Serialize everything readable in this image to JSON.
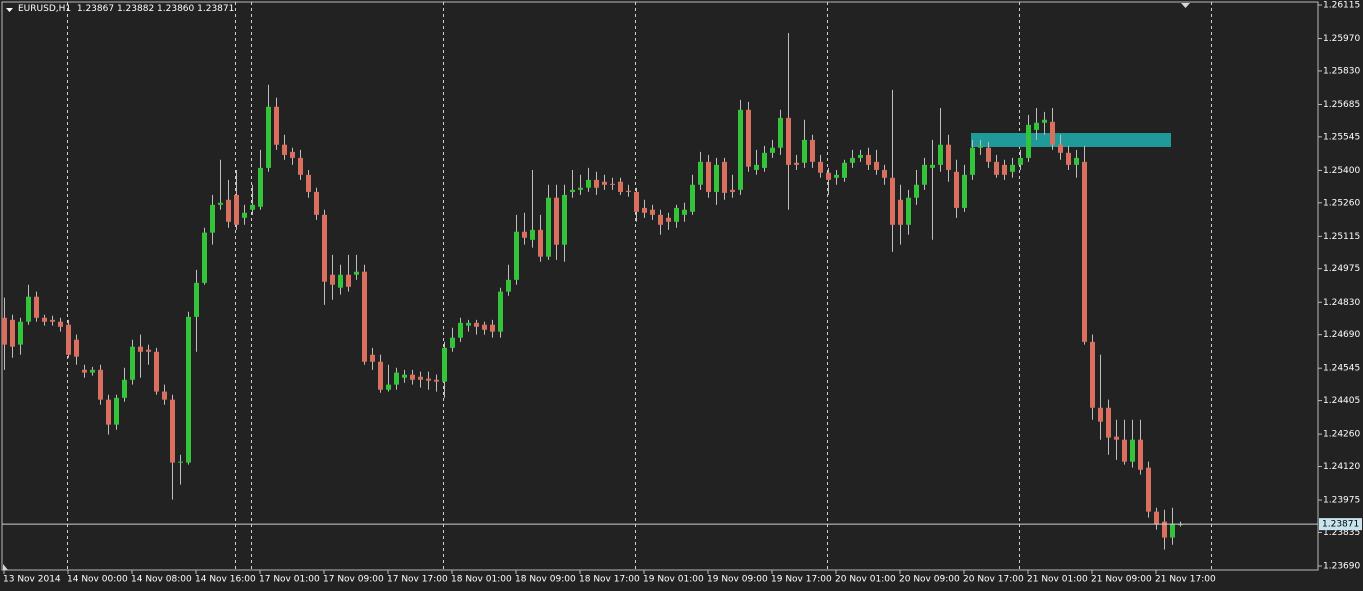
{
  "chart_data": {
    "type": "candlestick",
    "symbol": "EURUSD,H1",
    "up_color": "#33c43a",
    "down_color": "#d9705f",
    "wick_color": "#bdbdbd",
    "ylim": [
      1.2369,
      1.26115
    ],
    "yticks": [
      1.26115,
      {
        "value": 1.2597,
        "label": "1.25970"
      },
      {
        "value": 1.2583,
        "label": "1.25830"
      },
      1.25685,
      1.25545,
      {
        "value": 1.254,
        "label": "1.25400"
      },
      {
        "value": 1.2526,
        "label": "1.25260"
      },
      1.25115,
      1.24975,
      {
        "value": 1.2483,
        "label": "1.24830"
      },
      {
        "value": 1.2469,
        "label": "1.24690"
      },
      1.24545,
      1.24405,
      {
        "value": 1.2426,
        "label": "1.24260"
      },
      {
        "value": 1.2412,
        "label": "1.24120"
      },
      1.23975,
      1.23835,
      {
        "value": 1.2369,
        "label": "1.23690"
      }
    ],
    "categories": [
      "13 Nov 2014",
      null,
      null,
      null,
      null,
      null,
      null,
      null,
      "14 Nov 00:00",
      null,
      null,
      null,
      null,
      null,
      null,
      null,
      "14 Nov 08:00",
      null,
      null,
      null,
      null,
      null,
      null,
      null,
      "14 Nov 16:00",
      null,
      null,
      null,
      null,
      null,
      null,
      null,
      "17 Nov 01:00",
      null,
      null,
      null,
      null,
      null,
      null,
      null,
      "17 Nov 09:00",
      null,
      null,
      null,
      null,
      null,
      null,
      null,
      "17 Nov 17:00",
      null,
      null,
      null,
      null,
      null,
      null,
      null,
      "18 Nov 01:00",
      null,
      null,
      null,
      null,
      null,
      null,
      null,
      "18 Nov 09:00",
      null,
      null,
      null,
      null,
      null,
      null,
      null,
      "18 Nov 17:00",
      null,
      null,
      null,
      null,
      null,
      null,
      null,
      "19 Nov 01:00",
      null,
      null,
      null,
      null,
      null,
      null,
      null,
      "19 Nov 09:00",
      null,
      null,
      null,
      null,
      null,
      null,
      null,
      "19 Nov 17:00",
      null,
      null,
      null,
      null,
      null,
      null,
      null,
      "20 Nov 01:00",
      null,
      null,
      null,
      null,
      null,
      null,
      null,
      "20 Nov 09:00",
      null,
      null,
      null,
      null,
      null,
      null,
      null,
      "20 Nov 17:00",
      null,
      null,
      null,
      null,
      null,
      null,
      null,
      "21 Nov 01:00",
      null,
      null,
      null,
      null,
      null,
      null,
      null,
      "21 Nov 09:00",
      null,
      null,
      null,
      null,
      null,
      null,
      null,
      "21 Nov 17:00",
      null,
      null,
      null
    ],
    "open": [
      1.24763,
      1.24754,
      1.24647,
      1.24746,
      1.24854,
      1.24763,
      1.24754,
      1.24746,
      1.24733,
      1.24668,
      1.24538,
      1.24526,
      1.24538,
      1.24409,
      1.24301,
      1.24417,
      1.24495,
      1.24638,
      1.24625,
      1.24616,
      1.24444,
      1.24409,
      1.24137,
      1.24137,
      1.24767,
      1.24914,
      1.25131,
      1.25251,
      1.25273,
      1.25294,
      1.25195,
      1.2523,
      1.25243,
      1.25411,
      1.25675,
      1.25511,
      1.2548,
      1.25454,
      1.25381,
      1.25307,
      1.25208,
      1.24949,
      1.24893,
      1.24949,
      1.24949,
      1.24962,
      1.24603,
      1.24573,
      1.24452,
      1.24474,
      1.24504,
      1.24517,
      1.24508,
      1.245,
      1.24495,
      1.24487,
      1.24633,
      1.24677,
      1.24729,
      1.24741,
      1.24733,
      1.24733,
      1.24703,
      1.24876,
      1.24927,
      1.25135,
      1.251,
      1.25143,
      1.25027,
      1.25282,
      1.25079,
      1.25307,
      1.25316,
      1.25325,
      1.25359,
      1.25351,
      1.25342,
      1.25351,
      1.25312,
      1.25307,
      1.25238,
      1.2523,
      1.25208,
      1.25195,
      1.25178,
      1.25208,
      1.25221,
      1.25338,
      1.25437,
      1.25307,
      1.25437,
      1.25316,
      1.25316,
      1.25662,
      1.25402,
      1.25411,
      1.25476,
      1.25498,
      1.25627,
      1.25433,
      1.25433,
      1.25532,
      1.25437,
      1.2539,
      1.25368,
      1.25368,
      1.25433,
      1.25454,
      1.25467,
      1.25437,
      1.25402,
      1.25368,
      1.25273,
      1.25165,
      1.25282,
      1.25338,
      1.25411,
      1.25424,
      1.25511,
      1.25394,
      1.25238,
      1.25381,
      1.25498,
      1.25498,
      1.25437,
      1.25424,
      1.25394,
      1.25424,
      1.25454,
      1.25575,
      1.25606,
      1.2561,
      1.25511,
      1.25476,
      1.25424,
      1.25437,
      1.24659,
      1.24374,
      1.24374,
      1.24249,
      1.24236,
      1.24141,
      1.24236,
      1.24115,
      1.23925,
      1.23882,
      1.23813,
      1.23867
    ],
    "high": [
      1.2485,
      1.24776,
      1.24763,
      1.24906,
      1.24876,
      1.24776,
      1.24772,
      1.24763,
      1.24754,
      1.2469,
      1.2456,
      1.24551,
      1.2456,
      1.2443,
      1.2443,
      1.24547,
      1.24668,
      1.2469,
      1.24647,
      1.24633,
      1.24474,
      1.2443,
      1.24171,
      1.24789,
      1.2497,
      1.25152,
      1.25294,
      1.25446,
      1.25359,
      1.25402,
      1.25251,
      1.25338,
      1.25489,
      1.2577,
      1.25714,
      1.25554,
      1.25498,
      1.25489,
      1.25402,
      1.25325,
      1.2523,
      1.25035,
      1.24992,
      1.25035,
      1.25035,
      1.24992,
      1.24633,
      1.24603,
      1.2456,
      1.24547,
      1.24538,
      1.24538,
      1.2453,
      1.2453,
      1.24517,
      1.24659,
      1.2472,
      1.24763,
      1.24754,
      1.24754,
      1.24746,
      1.24754,
      1.24893,
      1.24992,
      1.25208,
      1.25217,
      1.25402,
      1.25208,
      1.25338,
      1.25338,
      1.25338,
      1.25402,
      1.25381,
      1.25411,
      1.25394,
      1.25381,
      1.25368,
      1.25368,
      1.25338,
      1.25325,
      1.25273,
      1.25251,
      1.2523,
      1.25217,
      1.25251,
      1.2526,
      1.25381,
      1.2548,
      1.25467,
      1.25454,
      1.25454,
      1.25381,
      1.25705,
      1.25696,
      1.25489,
      1.25506,
      1.25532,
      1.25662,
      1.25994,
      1.25467,
      1.25619,
      1.25554,
      1.25467,
      1.25411,
      1.25402,
      1.25446,
      1.25489,
      1.25489,
      1.25498,
      1.25489,
      1.25424,
      1.25748,
      1.25338,
      1.25316,
      1.25402,
      1.25454,
      1.25532,
      1.2567,
      1.25554,
      1.25446,
      1.25424,
      1.25532,
      1.25532,
      1.25523,
      1.25467,
      1.25446,
      1.25454,
      1.25489,
      1.2564,
      1.2567,
      1.25653,
      1.2567,
      1.25554,
      1.25506,
      1.25489,
      1.25506,
      1.2469,
      1.24603,
      1.24409,
      1.24322,
      1.24322,
      1.24322,
      1.24322,
      1.24141,
      1.23942,
      1.23933,
      1.23942,
      1.23882
    ],
    "low": [
      1.24538,
      1.2459,
      1.24603,
      1.24733,
      1.24746,
      1.24729,
      1.24729,
      1.24703,
      1.2459,
      1.2456,
      1.24504,
      1.24513,
      1.24387,
      1.24258,
      1.24279,
      1.244,
      1.24474,
      1.24504,
      1.2456,
      1.2443,
      1.24387,
      1.23977,
      1.24042,
      1.24128,
      1.24616,
      1.24906,
      1.25079,
      1.2523,
      1.25152,
      1.25143,
      1.25165,
      1.25208,
      1.2523,
      1.25394,
      1.25489,
      1.25446,
      1.25424,
      1.25359,
      1.25282,
      1.25186,
      1.24819,
      1.24841,
      1.24863,
      1.24876,
      1.24927,
      1.2456,
      1.24538,
      1.24439,
      1.24444,
      1.24452,
      1.24482,
      1.24474,
      1.24461,
      1.24452,
      1.24444,
      1.24417,
      1.24616,
      1.24659,
      1.24703,
      1.2469,
      1.2469,
      1.24677,
      1.24677,
      1.24858,
      1.24906,
      1.25079,
      1.25066,
      1.25005,
      1.25013,
      1.25013,
      1.25005,
      1.25282,
      1.25294,
      1.25307,
      1.25294,
      1.25316,
      1.25316,
      1.25294,
      1.25286,
      1.25178,
      1.25195,
      1.25186,
      1.25122,
      1.25143,
      1.25152,
      1.25178,
      1.25208,
      1.25316,
      1.25282,
      1.25251,
      1.25273,
      1.25282,
      1.25294,
      1.25394,
      1.25381,
      1.25394,
      1.25454,
      1.25467,
      1.2523,
      1.25402,
      1.25411,
      1.25411,
      1.25368,
      1.25294,
      1.25338,
      1.25351,
      1.25411,
      1.25437,
      1.25402,
      1.25381,
      1.25338,
      1.25048,
      1.25079,
      1.25122,
      1.25251,
      1.25316,
      1.251,
      1.25394,
      1.25351,
      1.25195,
      1.25221,
      1.25359,
      1.25467,
      1.25411,
      1.25368,
      1.25359,
      1.25368,
      1.25402,
      1.25437,
      1.25532,
      1.25554,
      1.25489,
      1.25446,
      1.25402,
      1.25368,
      1.24647,
      1.24322,
      1.24236,
      1.24171,
      1.24149,
      1.24128,
      1.24115,
      1.24085,
      1.23899,
      1.23847,
      1.23761,
      1.23782,
      1.2386
    ],
    "low_label": "1.23860",
    "close": [
      1.24647,
      1.24638,
      1.24746,
      1.24854,
      1.24763,
      1.24746,
      1.24746,
      1.24724,
      1.24603,
      1.24595,
      1.24526,
      1.24538,
      1.24409,
      1.24301,
      1.24417,
      1.24495,
      1.24638,
      1.24616,
      1.24616,
      1.24444,
      1.24409,
      1.24137,
      1.24141,
      1.24767,
      1.24914,
      1.25131,
      1.25251,
      1.2526,
      1.25178,
      1.25165,
      1.25217,
      1.25251,
      1.25411,
      1.25675,
      1.25511,
      1.25467,
      1.25454,
      1.25381,
      1.25307,
      1.25208,
      1.24919,
      1.24906,
      1.24949,
      1.24897,
      1.24962,
      1.24573,
      1.24573,
      1.24452,
      1.24474,
      1.24526,
      1.24517,
      1.24495,
      1.24495,
      1.24491,
      1.24487,
      1.24633,
      1.24677,
      1.24741,
      1.24741,
      1.24724,
      1.24711,
      1.24703,
      1.24876,
      1.24927,
      1.25135,
      1.25109,
      1.25143,
      1.25027,
      1.25282,
      1.25079,
      1.25294,
      1.25316,
      1.25325,
      1.25359,
      1.25325,
      1.25338,
      1.25338,
      1.25307,
      1.25307,
      1.25221,
      1.25217,
      1.25208,
      1.25165,
      1.25178,
      1.25238,
      1.2523,
      1.25338,
      1.25437,
      1.25307,
      1.25424,
      1.25303,
      1.25307,
      1.25662,
      1.25416,
      1.25424,
      1.25476,
      1.25498,
      1.25627,
      1.25424,
      1.25424,
      1.25532,
      1.25437,
      1.2539,
      1.25359,
      1.25381,
      1.25433,
      1.25454,
      1.25467,
      1.25424,
      1.25402,
      1.25368,
      1.25165,
      1.25165,
      1.25282,
      1.25338,
      1.25424,
      1.25424,
      1.25511,
      1.25402,
      1.25238,
      1.25381,
      1.25498,
      1.25506,
      1.25437,
      1.25381,
      1.25381,
      1.25424,
      1.25454,
      1.25597,
      1.25606,
      1.25619,
      1.25511,
      1.25476,
      1.25424,
      1.25454,
      1.24659,
      1.24374,
      1.24314,
      1.24245,
      1.24236,
      1.24141,
      1.24236,
      1.24106,
      1.23925,
      1.23869,
      1.23813,
      1.23873,
      1.23871
    ]
  }
}
